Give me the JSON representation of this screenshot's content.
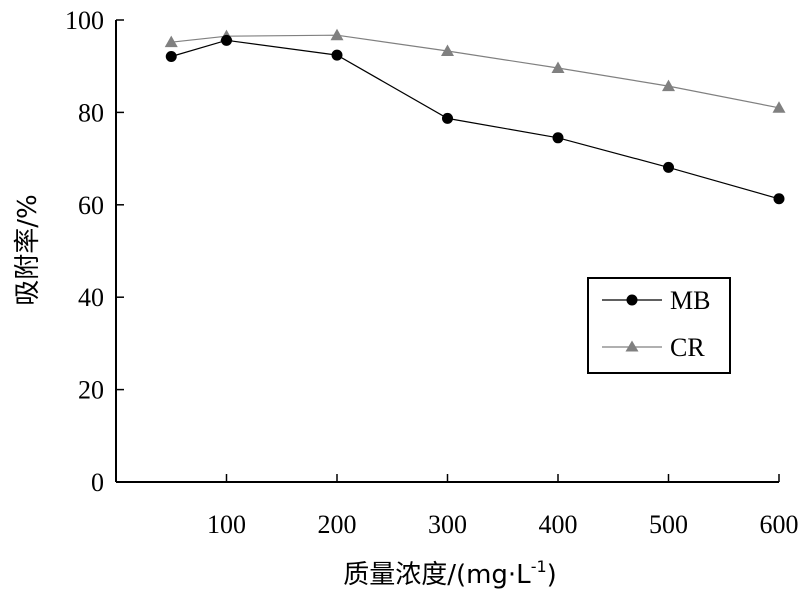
{
  "chart_data": {
    "type": "line",
    "title": "",
    "xlabel_main": "质量浓度/(mg·L",
    "xlabel_sup": "-1",
    "xlabel_end": ")",
    "ylabel": "吸附率/%",
    "xlim": [
      0,
      600
    ],
    "ylim": [
      0,
      100
    ],
    "x_ticks": [
      100,
      200,
      300,
      400,
      500,
      600
    ],
    "y_ticks": [
      0,
      20,
      40,
      60,
      80,
      100
    ],
    "grid": false,
    "legend_position": "center-right",
    "series": [
      {
        "name": "MB",
        "marker": "circle",
        "color": "#000000",
        "x": [
          50,
          100,
          200,
          300,
          400,
          500,
          600
        ],
        "y": [
          92.1,
          95.6,
          92.4,
          78.7,
          74.5,
          68.1,
          61.3
        ]
      },
      {
        "name": "CR",
        "marker": "triangle",
        "color": "#808080",
        "x": [
          50,
          100,
          200,
          300,
          400,
          500,
          600
        ],
        "y": [
          95.2,
          96.5,
          96.7,
          93.3,
          89.6,
          85.7,
          81.0
        ]
      }
    ]
  }
}
